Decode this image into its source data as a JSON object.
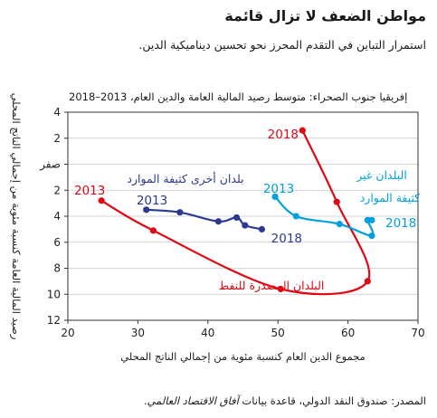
{
  "header": {
    "title": "مواطن الضعف لا تزال قائمة",
    "subtitle": "استمرار التباين في التقدم المحرز نحو تحسين ديناميكية الدين."
  },
  "footer": {
    "source_prefix": "المصدر: صندوق النقد الدولي، قاعدة بيانات ",
    "source_title": "آفاق الاقتصاد العالمي",
    "source_suffix": "."
  },
  "chart_data": {
    "type": "line",
    "title": "إفريقيا جنوب الصحراء: متوسط رصيد المالية العامة والدين العام، 2013–2018",
    "xlabel": "مجموع الدين العام كنسبة مئوية من إجمالي الناتج المحلي",
    "ylabel": "رصيد المالية العامة كنسبة مئوية من إجمالي الناتج المحلي",
    "xlim": [
      20,
      70
    ],
    "ylim": [
      -4,
      12
    ],
    "y_inverted": true,
    "x_ticks": [
      "20",
      "30",
      "40",
      "50",
      "60",
      "70"
    ],
    "y_ticks": [
      "4",
      "2",
      "صفر",
      "2",
      "4",
      "6",
      "8",
      "10",
      "12"
    ],
    "grid": "horizontal",
    "series": [
      {
        "name": "البلدان المصدرة للنفط",
        "color": "#e30613",
        "start_label": "2013",
        "end_label": "2018",
        "points": [
          {
            "x": 24.8,
            "y": 2.8
          },
          {
            "x": 32.2,
            "y": 5.1
          },
          {
            "x": 50.4,
            "y": 9.6
          },
          {
            "x": 62.8,
            "y": 9.0
          },
          {
            "x": 58.4,
            "y": 2.9
          },
          {
            "x": 53.5,
            "y": -2.6
          }
        ]
      },
      {
        "name": "بلدان أخرى كثيفة الموارد",
        "color": "#2b3990",
        "start_label": "2013",
        "end_label": "2018",
        "points": [
          {
            "x": 31.2,
            "y": 3.5
          },
          {
            "x": 36.0,
            "y": 3.7
          },
          {
            "x": 41.5,
            "y": 4.4
          },
          {
            "x": 44.1,
            "y": 4.1
          },
          {
            "x": 45.3,
            "y": 4.7
          },
          {
            "x": 47.7,
            "y": 5.0
          }
        ]
      },
      {
        "name": "البلدان غير كثيفة الموارد",
        "color": "#00a0df",
        "start_label": "2013",
        "end_label": "2018",
        "points": [
          {
            "x": 49.6,
            "y": 2.5
          },
          {
            "x": 52.6,
            "y": 4.0
          },
          {
            "x": 58.8,
            "y": 4.6
          },
          {
            "x": 63.4,
            "y": 5.5
          },
          {
            "x": 62.8,
            "y": 4.3
          },
          {
            "x": 63.4,
            "y": 4.3
          }
        ]
      }
    ]
  }
}
